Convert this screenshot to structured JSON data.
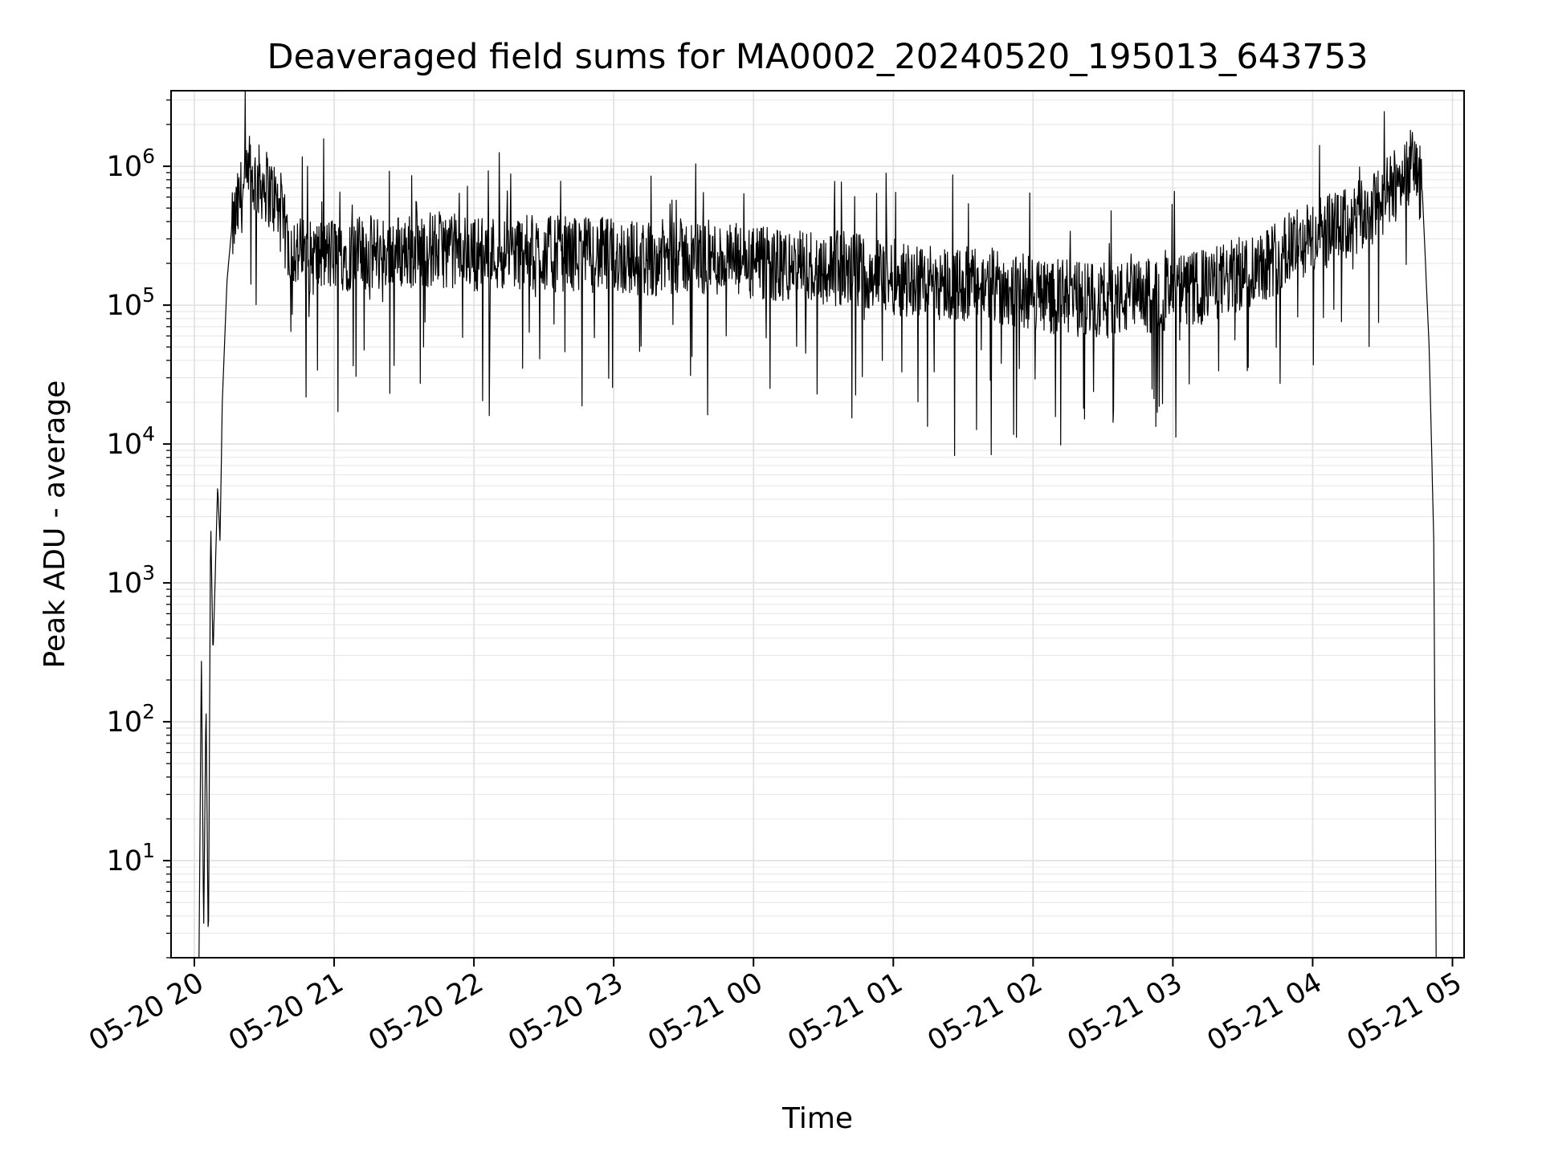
{
  "chart_data": {
    "type": "line",
    "title": "Deaveraged field sums for MA0002_20240520_195013_643753",
    "xlabel": "Time",
    "ylabel": "Peak ADU - average",
    "yscale": "log",
    "ylim": [
      2,
      3500000
    ],
    "xlim": [
      "2024-05-20 19:50",
      "2024-05-21 05:05"
    ],
    "grid": true,
    "line_color": "#000000",
    "x_ticks": [
      {
        "t": "2024-05-20 20:00",
        "label": "05-20 20"
      },
      {
        "t": "2024-05-20 21:00",
        "label": "05-20 21"
      },
      {
        "t": "2024-05-20 22:00",
        "label": "05-20 22"
      },
      {
        "t": "2024-05-20 23:00",
        "label": "05-20 23"
      },
      {
        "t": "2024-05-21 00:00",
        "label": "05-21 00"
      },
      {
        "t": "2024-05-21 01:00",
        "label": "05-21 01"
      },
      {
        "t": "2024-05-21 02:00",
        "label": "05-21 02"
      },
      {
        "t": "2024-05-21 03:00",
        "label": "05-21 03"
      },
      {
        "t": "2024-05-21 04:00",
        "label": "05-21 04"
      },
      {
        "t": "2024-05-21 05:00",
        "label": "05-21 05"
      }
    ],
    "y_ticks": [
      {
        "value": 10,
        "base": "10",
        "exp": "1"
      },
      {
        "value": 100,
        "base": "10",
        "exp": "2"
      },
      {
        "value": 1000,
        "base": "10",
        "exp": "3"
      },
      {
        "value": 10000,
        "base": "10",
        "exp": "4"
      },
      {
        "value": 100000,
        "base": "10",
        "exp": "5"
      },
      {
        "value": 1000000,
        "base": "10",
        "exp": "6"
      }
    ],
    "series": [
      {
        "x": [
          "2024-05-20 20:02",
          "2024-05-20 20:03",
          "2024-05-20 20:04",
          "2024-05-20 20:05",
          "2024-05-20 20:06",
          "2024-05-20 20:07",
          "2024-05-20 20:08",
          "2024-05-20 20:09",
          "2024-05-20 20:10",
          "2024-05-20 20:11",
          "2024-05-20 20:12",
          "2024-05-20 20:14",
          "2024-05-20 20:16",
          "2024-05-20 20:20",
          "2024-05-20 20:25",
          "2024-05-20 20:30",
          "2024-05-20 20:35",
          "2024-05-20 20:40",
          "2024-05-20 20:45",
          "2024-05-20 20:50",
          "2024-05-20 21:00",
          "2024-05-20 21:15",
          "2024-05-20 21:30",
          "2024-05-20 21:45",
          "2024-05-20 22:00",
          "2024-05-20 22:15",
          "2024-05-20 22:30",
          "2024-05-20 22:45",
          "2024-05-20 23:00",
          "2024-05-20 23:15",
          "2024-05-20 23:30",
          "2024-05-20 23:45",
          "2024-05-21 00:00",
          "2024-05-21 00:15",
          "2024-05-21 00:30",
          "2024-05-21 00:45",
          "2024-05-21 01:00",
          "2024-05-21 01:15",
          "2024-05-21 01:30",
          "2024-05-21 01:45",
          "2024-05-21 02:00",
          "2024-05-21 02:15",
          "2024-05-21 02:30",
          "2024-05-21 02:45",
          "2024-05-21 03:00",
          "2024-05-21 03:15",
          "2024-05-21 03:30",
          "2024-05-21 03:45",
          "2024-05-21 03:55",
          "2024-05-21 04:05",
          "2024-05-21 04:15",
          "2024-05-21 04:25",
          "2024-05-21 04:35",
          "2024-05-21 04:40",
          "2024-05-21 04:44",
          "2024-05-21 04:47",
          "2024-05-21 04:50",
          "2024-05-21 04:52",
          "2024-05-21 04:53"
        ],
        "y": [
          2,
          300,
          3,
          150,
          2,
          3000,
          300,
          1200,
          5000,
          2000,
          20000,
          150000,
          350000,
          650000,
          850000,
          800000,
          600000,
          300000,
          250000,
          230000,
          250000,
          250000,
          260000,
          270000,
          250000,
          260000,
          250000,
          250000,
          240000,
          230000,
          240000,
          230000,
          210000,
          200000,
          200000,
          190000,
          170000,
          160000,
          150000,
          145000,
          130000,
          120000,
          115000,
          120000,
          130000,
          145000,
          180000,
          240000,
          300000,
          350000,
          400000,
          500000,
          750000,
          1000000,
          1100000,
          700000,
          50000,
          2000,
          2
        ]
      }
    ]
  }
}
